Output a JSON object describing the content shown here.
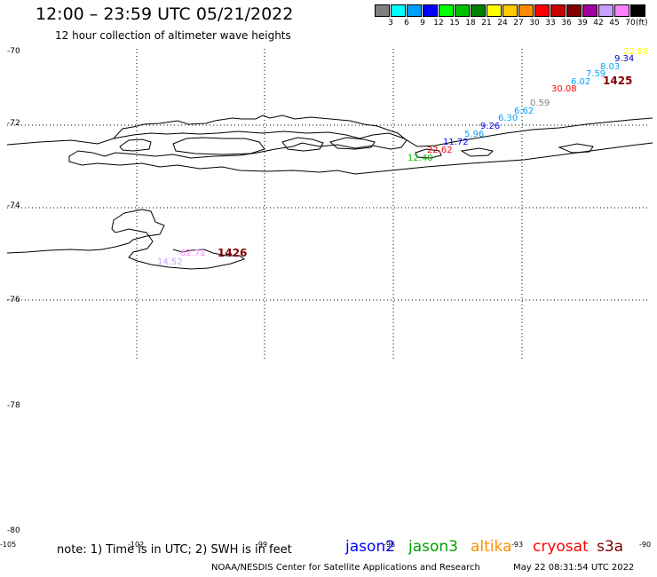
{
  "header": {
    "title": "12:00 – 23:59 UTC 05/21/2022",
    "subtitle": "12 hour collection of altimeter wave heights"
  },
  "colorbar": {
    "colors": [
      "#808080",
      "#00ffff",
      "#00a0ff",
      "#0000ff",
      "#00ff00",
      "#00c000",
      "#008000",
      "#ffff00",
      "#ffc800",
      "#ff8c00",
      "#ff0000",
      "#c80000",
      "#800000",
      "#a000a0",
      "#c8a0ff",
      "#ff80ff",
      "#000000"
    ],
    "labels": [
      "3",
      "6",
      "9",
      "12",
      "15",
      "18",
      "21",
      "24",
      "27",
      "30",
      "33",
      "36",
      "39",
      "42",
      "45",
      "70"
    ],
    "unit": "(ft)"
  },
  "axes": {
    "lat_labels": [
      "-70",
      "-72",
      "-74",
      "-76",
      "-78",
      "-80"
    ],
    "lon_labels": [
      "-105",
      "-102",
      "-99",
      "-96",
      "-93",
      "-90"
    ]
  },
  "wave_heights": [
    {
      "text": "22.86",
      "color": "#ffff00"
    },
    {
      "text": "9.34",
      "color": "#0000c0"
    },
    {
      "text": "8.03",
      "color": "#00a0ff"
    },
    {
      "text": "7.59",
      "color": "#00a0ff"
    },
    {
      "text": "6.02",
      "color": "#00a0ff"
    },
    {
      "text": "30.08",
      "color": "#ff0000"
    },
    {
      "text": "0.59",
      "color": "#808080"
    },
    {
      "text": "6.62",
      "color": "#00a0ff"
    },
    {
      "text": "6.30",
      "color": "#00a0ff"
    },
    {
      "text": "9.26",
      "color": "#0000ff"
    },
    {
      "text": "5.96",
      "color": "#00a0ff"
    },
    {
      "text": "11.72",
      "color": "#0000ff"
    },
    {
      "text": "22.62",
      "color": "#ff0000"
    },
    {
      "text": "12.40",
      "color": "#00c000"
    },
    {
      "text": "82.71",
      "color": "#ff80ff"
    },
    {
      "text": "14.52",
      "color": "#c8a0ff"
    }
  ],
  "time_markers": [
    {
      "text": "1425",
      "color": "#800000"
    },
    {
      "text": "1426",
      "color": "#800000"
    }
  ],
  "legend": {
    "note": "note: 1) Time is in UTC; 2) SWH is in feet",
    "satellites": [
      {
        "name": "jason2",
        "color": "#0000ff"
      },
      {
        "name": "jason3",
        "color": "#00a000"
      },
      {
        "name": "altika",
        "color": "#ff8c00"
      },
      {
        "name": "cryosat",
        "color": "#ff0000"
      },
      {
        "name": "s3a",
        "color": "#800000"
      }
    ]
  },
  "footer": {
    "credit": "NOAA/NESDIS Center for Satellite Applications and Research",
    "timestamp": "May 22 08:31:54 UTC 2022"
  }
}
